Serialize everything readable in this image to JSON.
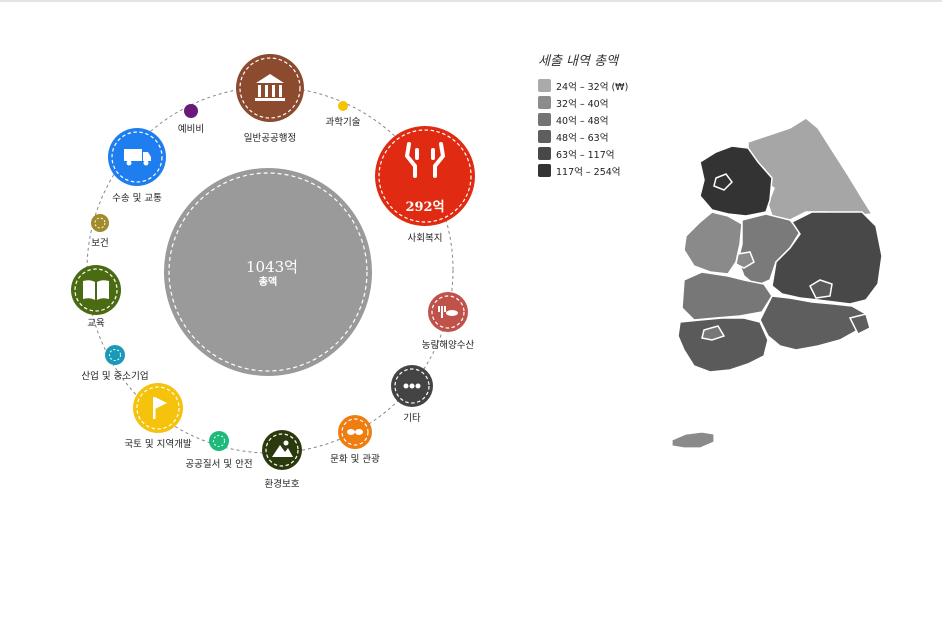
{
  "total": {
    "value": "1043억",
    "label": "총액"
  },
  "categories": [
    {
      "id": "general",
      "label": "일반공공행정",
      "color": "#8c4a2f",
      "icon": "bank-icon",
      "size": "large"
    },
    {
      "id": "science",
      "label": "과학기술",
      "color": "#f5c400",
      "icon": "dot-icon",
      "size": "tiny"
    },
    {
      "id": "welfare",
      "label": "사회복지",
      "value": "292억",
      "color": "#e02b12",
      "icon": "hands-icon",
      "size": "xlarge"
    },
    {
      "id": "agri",
      "label": "농림해양수산",
      "color": "#c0524a",
      "icon": "fish-icon",
      "size": "medium"
    },
    {
      "id": "etc",
      "label": "기타",
      "color": "#444444",
      "icon": "more-icon",
      "size": "medium"
    },
    {
      "id": "culture",
      "label": "문화 및 관광",
      "color": "#f07d10",
      "icon": "mask-icon",
      "size": "medium"
    },
    {
      "id": "env",
      "label": "환경보호",
      "color": "#2b3a0c",
      "icon": "mountain-icon",
      "size": "medium"
    },
    {
      "id": "safety",
      "label": "공공질서 및 안전",
      "color": "#1dba7a",
      "icon": "ring-icon",
      "size": "small"
    },
    {
      "id": "land",
      "label": "국토 및 지역개발",
      "color": "#f5c20c",
      "icon": "flag-icon",
      "size": "mediumlarge"
    },
    {
      "id": "industry",
      "label": "산업 및 중소기업",
      "color": "#1a9ab8",
      "icon": "ring-icon",
      "size": "small"
    },
    {
      "id": "edu",
      "label": "교육",
      "color": "#4a6b12",
      "icon": "book-icon",
      "size": "medium"
    },
    {
      "id": "health",
      "label": "보건",
      "color": "#a08a2a",
      "icon": "ring-icon",
      "size": "small"
    },
    {
      "id": "transport",
      "label": "수송 및 교통",
      "color": "#1e7ef0",
      "icon": "truck-icon",
      "size": "large"
    },
    {
      "id": "reserve",
      "label": "예비비",
      "color": "#6a1a7a",
      "icon": "dot-icon",
      "size": "tiny"
    }
  ],
  "legend": {
    "title": "세출 내역 총액",
    "items": [
      {
        "label": "24억 – 32억 (₩)",
        "color": "#aaaaaa"
      },
      {
        "label": "32억 – 40억",
        "color": "#8c8c8c"
      },
      {
        "label": "40억 – 48억",
        "color": "#747474"
      },
      {
        "label": "48억 – 63억",
        "color": "#5e5e5e"
      },
      {
        "label": "63억 – 117억",
        "color": "#484848"
      },
      {
        "label": "117억 – 254억",
        "color": "#333333"
      }
    ]
  }
}
